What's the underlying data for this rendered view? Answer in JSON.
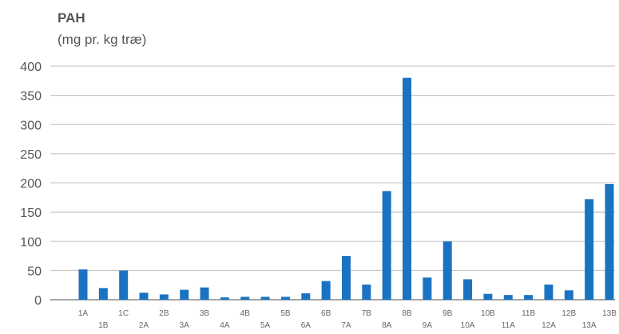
{
  "chart_data": {
    "type": "bar",
    "title": "PAH",
    "ylabel": "(mg pr. kg træ)",
    "xlabel": "",
    "ylim": [
      0,
      400
    ],
    "yticks": [
      0,
      50,
      100,
      150,
      200,
      250,
      300,
      350,
      400
    ],
    "grid": true,
    "color": "#1a73c2",
    "categories": [
      "1A",
      "1B",
      "1C",
      "2A",
      "2B",
      "3A",
      "3B",
      "4A",
      "4B",
      "5A",
      "5B",
      "6A",
      "6B",
      "7A",
      "7B",
      "8A",
      "8B",
      "9A",
      "9B",
      "10A",
      "10B",
      "11A",
      "11B",
      "12A",
      "12B",
      "13A",
      "13B"
    ],
    "values": [
      52,
      20,
      50,
      12,
      9,
      17,
      21,
      4,
      5,
      5,
      5,
      11,
      32,
      75,
      26,
      186,
      380,
      38,
      100,
      35,
      10,
      8,
      8,
      26,
      16,
      172,
      198
    ]
  }
}
